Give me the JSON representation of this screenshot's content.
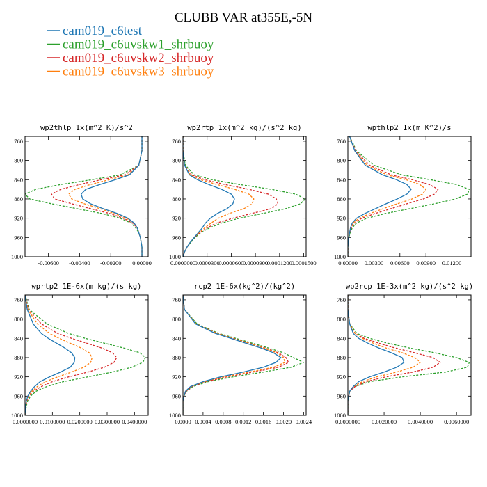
{
  "chart_data": {
    "type": "line",
    "title": "CLUBB VAR at355E,-5N",
    "legend": {
      "placement": "top-left",
      "entries": [
        {
          "name": "cam019_c6test",
          "color": "#1f77b4",
          "dash": "solid"
        },
        {
          "name": "cam019_c6uvskw1_shrbuoy",
          "color": "#2ca02c",
          "dash": "dashed"
        },
        {
          "name": "cam019_c6uvskw2_shrbuoy",
          "color": "#d62728",
          "dash": "dashed"
        },
        {
          "name": "cam019_c6uvskw3_shrbuoy",
          "color": "#ff7f0e",
          "dash": "dashed"
        }
      ]
    },
    "y": {
      "label": "",
      "range": [
        1000,
        750
      ],
      "ticks": [
        760,
        800,
        840,
        880,
        920,
        960,
        1000
      ],
      "values": [
        750,
        780,
        810,
        830,
        840,
        850,
        860,
        870,
        880,
        890,
        900,
        910,
        920,
        930,
        940,
        950,
        960,
        970,
        980,
        990,
        1000
      ]
    },
    "panels": [
      {
        "title": "wp2thlp   1x(m^2 K)/s^2",
        "xlim": [
          -0.0075,
          0.0004
        ],
        "xticks": [
          -0.006,
          -0.004,
          -0.002,
          0.0
        ],
        "xtick_labels": [
          "-0.00600",
          "-0.00400",
          "-0.00200",
          "0.00000"
        ],
        "series": [
          {
            "name": "cam019_c6test",
            "values": [
              0.0,
              0.0,
              -0.0002,
              -0.0008,
              -0.0017,
              -0.0027,
              -0.0036,
              -0.0039,
              -0.0038,
              -0.0033,
              -0.0025,
              -0.0016,
              -0.0009,
              -0.0005,
              -0.0003,
              -0.0002,
              -0.0001,
              -5e-05,
              0.0,
              0.0,
              0.0
            ]
          },
          {
            "name": "cam019_c6uvskw1_shrbuoy",
            "values": [
              0.0,
              0.0,
              -0.0002,
              -0.0014,
              -0.0032,
              -0.0052,
              -0.0068,
              -0.0075,
              -0.0072,
              -0.0058,
              -0.0042,
              -0.0026,
              -0.0014,
              -0.0007,
              -0.0004,
              -0.0002,
              -0.0001,
              -5e-05,
              0.0,
              0.0,
              0.0
            ]
          },
          {
            "name": "cam019_c6uvskw2_shrbuoy",
            "values": [
              0.0,
              0.0,
              -0.0002,
              -0.0011,
              -0.0026,
              -0.004,
              -0.0052,
              -0.0058,
              -0.0056,
              -0.0045,
              -0.0033,
              -0.0021,
              -0.0012,
              -0.0006,
              -0.0003,
              -0.0002,
              -0.0001,
              -5e-05,
              0.0,
              0.0,
              0.0
            ]
          },
          {
            "name": "cam019_c6uvskw3_shrbuoy",
            "values": [
              0.0,
              0.0,
              -0.0002,
              -0.0009,
              -0.0021,
              -0.0033,
              -0.0043,
              -0.0047,
              -0.0045,
              -0.0037,
              -0.0027,
              -0.0018,
              -0.001,
              -0.0005,
              -0.0003,
              -0.0002,
              -0.0001,
              -5e-05,
              0.0,
              0.0,
              0.0
            ]
          }
        ]
      },
      {
        "title": "wp2rtp   1x(m^2 kg)/(s^2 kg)",
        "xlim": [
          0.0,
          0.000153
        ],
        "xticks": [
          0.0,
          3e-05,
          6e-05,
          9e-05,
          0.00012,
          0.00015
        ],
        "xtick_labels": [
          "0.0000000",
          "0.0000300",
          "0.0000600",
          "0.0000900",
          "0.0001200",
          "0.0001500"
        ],
        "series": [
          {
            "name": "cam019_c6test",
            "values": [
              0.0,
              0.0,
              2e-06,
              8e-06,
              1.8e-05,
              3.2e-05,
              4.8e-05,
              6e-05,
              6.4e-05,
              6.2e-05,
              5.5e-05,
              4.3e-05,
              3.4e-05,
              2.8e-05,
              2.4e-05,
              1.9e-05,
              1.4e-05,
              9e-06,
              5e-06,
              2e-06,
              0.0
            ]
          },
          {
            "name": "cam019_c6uvskw1_shrbuoy",
            "values": [
              0.0,
              0.0,
              3e-06,
              1.4e-05,
              3.6e-05,
              7e-05,
              0.00011,
              0.00014,
              0.000152,
              0.000146,
              0.000128,
              0.0001,
              7e-05,
              4.8e-05,
              3.3e-05,
              2.2e-05,
              1.5e-05,
              1e-05,
              5e-06,
              2e-06,
              0.0
            ]
          },
          {
            "name": "cam019_c6uvskw2_shrbuoy",
            "values": [
              0.0,
              0.0,
              2e-06,
              1.1e-05,
              2.7e-05,
              5.2e-05,
              8.2e-05,
              0.000106,
              0.000116,
              0.000118,
              0.00011,
              8.6e-05,
              6.2e-05,
              4.2e-05,
              3e-05,
              2.1e-05,
              1.4e-05,
              9e-06,
              5e-06,
              2e-06,
              0.0
            ]
          },
          {
            "name": "cam019_c6uvskw3_shrbuoy",
            "values": [
              0.0,
              0.0,
              2e-06,
              9e-06,
              2.2e-05,
              4.2e-05,
              6.4e-05,
              8.2e-05,
              8.8e-05,
              8.6e-05,
              7.6e-05,
              5.8e-05,
              4.4e-05,
              3.5e-05,
              2.7e-05,
              2e-05,
              1.4e-05,
              9e-06,
              5e-06,
              2e-06,
              0.0
            ]
          }
        ]
      },
      {
        "title": "wpthlp2   1x(m K^2)/s",
        "xlim": [
          0.0,
          0.0142
        ],
        "xticks": [
          0.0,
          0.003,
          0.006,
          0.009,
          0.012
        ],
        "xtick_labels": [
          "0.00000",
          "0.00300",
          "0.00600",
          "0.00900",
          "0.01200"
        ],
        "series": [
          {
            "name": "cam019_c6test",
            "values": [
              0.0002,
              0.0008,
              0.002,
              0.004,
              0.0056,
              0.0068,
              0.0073,
              0.0068,
              0.0057,
              0.0044,
              0.0032,
              0.002,
              0.001,
              0.0005,
              0.0003,
              0.0002,
              0.0001,
              5e-05,
              0.0,
              0.0,
              0.0
            ]
          },
          {
            "name": "cam019_c6uvskw1_shrbuoy",
            "values": [
              0.0002,
              0.001,
              0.003,
              0.0062,
              0.0095,
              0.0125,
              0.014,
              0.0138,
              0.0124,
              0.01,
              0.0072,
              0.0044,
              0.0022,
              0.001,
              0.0005,
              0.0003,
              0.0001,
              5e-05,
              0.0,
              0.0,
              0.0
            ]
          },
          {
            "name": "cam019_c6uvskw2_shrbuoy",
            "values": [
              0.0002,
              0.0009,
              0.0025,
              0.005,
              0.0074,
              0.0094,
              0.0104,
              0.01,
              0.0087,
              0.0068,
              0.005,
              0.0032,
              0.0016,
              0.0008,
              0.0004,
              0.0002,
              0.0001,
              5e-05,
              0.0,
              0.0,
              0.0
            ]
          },
          {
            "name": "cam019_c6uvskw3_shrbuoy",
            "values": [
              0.0002,
              0.0008,
              0.0022,
              0.0045,
              0.0067,
              0.0083,
              0.009,
              0.0086,
              0.0074,
              0.0057,
              0.0041,
              0.0026,
              0.0013,
              0.0006,
              0.0003,
              0.0002,
              0.0001,
              5e-05,
              0.0,
              0.0,
              0.0
            ]
          }
        ]
      },
      {
        "title": "wprtp2   1E-6x(m kg)/(s kg)",
        "xlim": [
          0.0,
          0.045
        ],
        "xticks": [
          0.0,
          0.01,
          0.02,
          0.03,
          0.04
        ],
        "xtick_labels": [
          "0.0000000",
          "0.0100000",
          "0.0200000",
          "0.0300000",
          "0.0400000"
        ],
        "series": [
          {
            "name": "cam019_c6test",
            "values": [
              0.0,
              0.0008,
              0.003,
              0.006,
              0.0085,
              0.0115,
              0.0145,
              0.017,
              0.0182,
              0.018,
              0.0165,
              0.013,
              0.009,
              0.0055,
              0.0035,
              0.002,
              0.001,
              0.0005,
              0.0002,
              0.0001,
              0.0
            ]
          },
          {
            "name": "cam019_c6uvskw1_shrbuoy",
            "values": [
              0.0,
              0.0015,
              0.008,
              0.016,
              0.022,
              0.029,
              0.036,
              0.042,
              0.044,
              0.043,
              0.039,
              0.032,
              0.023,
              0.014,
              0.008,
              0.004,
              0.002,
              0.001,
              0.0005,
              0.0002,
              0.0
            ]
          },
          {
            "name": "cam019_c6uvskw2_shrbuoy",
            "values": [
              0.0,
              0.0012,
              0.006,
              0.012,
              0.017,
              0.0225,
              0.028,
              0.032,
              0.0335,
              0.0325,
              0.029,
              0.023,
              0.016,
              0.01,
              0.006,
              0.003,
              0.0015,
              0.0007,
              0.0003,
              0.0001,
              0.0
            ]
          },
          {
            "name": "cam019_c6uvskw3_shrbuoy",
            "values": [
              0.0,
              0.001,
              0.0045,
              0.009,
              0.0125,
              0.0165,
              0.0205,
              0.0235,
              0.0245,
              0.024,
              0.0215,
              0.017,
              0.012,
              0.0075,
              0.0045,
              0.0025,
              0.0012,
              0.0006,
              0.0002,
              0.0001,
              0.0
            ]
          }
        ]
      },
      {
        "title": "rcp2   1E-6x(kg^2)/(kg^2)",
        "xlim": [
          0.0,
          0.00245
        ],
        "xticks": [
          0.0,
          0.0004,
          0.0008,
          0.0012,
          0.0016,
          0.002,
          0.0024
        ],
        "xtick_labels": [
          "0.0000",
          "0.0004",
          "0.0008",
          "0.0012",
          "0.0016",
          "0.0020",
          "0.0024"
        ],
        "series": [
          {
            "name": "cam019_c6test",
            "values": [
              0.0,
              3e-05,
              0.00025,
              0.00065,
              0.00095,
              0.00125,
              0.00155,
              0.0018,
              0.00195,
              0.00185,
              0.0016,
              0.0012,
              0.00075,
              0.0004,
              0.00015,
              5e-05,
              2e-05,
              0.0,
              0.0,
              0.0,
              0.0
            ]
          },
          {
            "name": "cam019_c6uvskw1_shrbuoy",
            "values": [
              0.0,
              3e-05,
              0.00028,
              0.00072,
              0.00105,
              0.00138,
              0.0017,
              0.002,
              0.0022,
              0.0024,
              0.00215,
              0.0016,
              0.001,
              0.0005,
              0.0002,
              7e-05,
              2e-05,
              0.0,
              0.0,
              0.0,
              0.0
            ]
          },
          {
            "name": "cam019_c6uvskw2_shrbuoy",
            "values": [
              0.0,
              3e-05,
              0.00026,
              0.00069,
              0.001,
              0.00132,
              0.00163,
              0.0019,
              0.00205,
              0.0021,
              0.0019,
              0.0014,
              0.00088,
              0.00045,
              0.00018,
              6e-05,
              2e-05,
              0.0,
              0.0,
              0.0,
              0.0
            ]
          },
          {
            "name": "cam019_c6uvskw3_shrbuoy",
            "values": [
              0.0,
              3e-05,
              0.00026,
              0.00068,
              0.00098,
              0.0013,
              0.0016,
              0.00186,
              0.002,
              0.00203,
              0.0018,
              0.00132,
              0.00082,
              0.00042,
              0.00016,
              5e-05,
              2e-05,
              0.0,
              0.0,
              0.0,
              0.0
            ]
          }
        ]
      },
      {
        "title": "wp2rcp   1E-3x(m^2 kg)/(s^2 kg)",
        "xlim": [
          0.0,
          0.0068
        ],
        "xticks": [
          0.0,
          0.002,
          0.004,
          0.006
        ],
        "xtick_labels": [
          "0.0000000",
          "0.0020000",
          "0.0040000",
          "0.0060000"
        ],
        "series": [
          {
            "name": "cam019_c6test",
            "values": [
              0.0,
              0.0,
              0.0001,
              0.0003,
              0.0006,
              0.0011,
              0.0017,
              0.0024,
              0.003,
              0.0031,
              0.0027,
              0.002,
              0.0012,
              0.0006,
              0.0003,
              0.0001,
              5e-05,
              0.0,
              0.0,
              0.0,
              0.0
            ]
          },
          {
            "name": "cam019_c6uvskw1_shrbuoy",
            "values": [
              0.0,
              0.0,
              0.0001,
              0.0005,
              0.0012,
              0.0022,
              0.0034,
              0.0048,
              0.006,
              0.0067,
              0.0066,
              0.0054,
              0.003,
              0.0012,
              0.0004,
              0.0001,
              5e-05,
              0.0,
              0.0,
              0.0,
              0.0
            ]
          },
          {
            "name": "cam019_c6uvskw2_shrbuoy",
            "values": [
              0.0,
              0.0,
              0.0001,
              0.0004,
              0.0009,
              0.0017,
              0.0026,
              0.0037,
              0.0047,
              0.0051,
              0.0047,
              0.0036,
              0.0021,
              0.001,
              0.0004,
              0.0001,
              5e-05,
              0.0,
              0.0,
              0.0,
              0.0
            ]
          },
          {
            "name": "cam019_c6uvskw3_shrbuoy",
            "values": [
              0.0,
              0.0,
              0.0001,
              0.0004,
              0.0008,
              0.0014,
              0.0021,
              0.003,
              0.0037,
              0.004,
              0.0036,
              0.0027,
              0.0016,
              0.0008,
              0.0003,
              0.0001,
              5e-05,
              0.0,
              0.0,
              0.0,
              0.0
            ]
          }
        ]
      }
    ]
  }
}
